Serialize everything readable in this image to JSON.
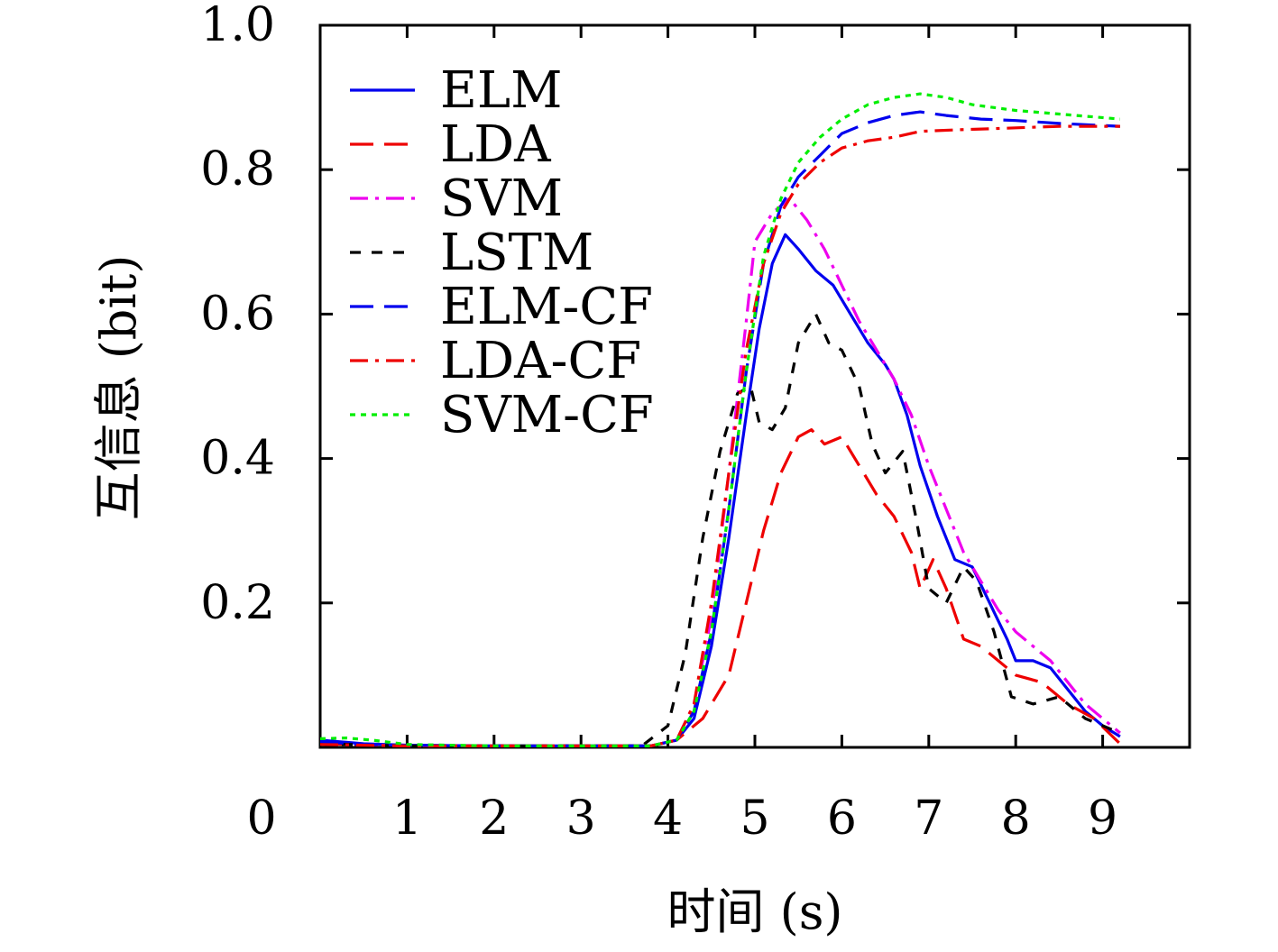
{
  "chart_data": {
    "type": "line",
    "xlabel": "时间 (s)",
    "ylabel": "互信息 (bit)",
    "xlim": [
      0,
      10
    ],
    "ylim": [
      0,
      1
    ],
    "x_ticks": [
      0,
      1,
      2,
      3,
      4,
      5,
      6,
      7,
      8,
      9
    ],
    "y_ticks": [
      0.2,
      0.4,
      0.6,
      0.8,
      1.0
    ],
    "x_tick_labels": [
      "0",
      "1",
      "2",
      "3",
      "4",
      "5",
      "6",
      "7",
      "8",
      "9"
    ],
    "y_tick_labels": [
      "0.2",
      "0.4",
      "0.6",
      "0.8",
      "1.0"
    ],
    "grid": false,
    "legend_position": "top-left",
    "series": [
      {
        "name": "ELM",
        "color": "#0000ee",
        "dash": "solid",
        "points": [
          [
            0,
            0.01
          ],
          [
            0.5,
            0.005
          ],
          [
            1,
            0.003
          ],
          [
            2,
            0.002
          ],
          [
            3,
            0.002
          ],
          [
            3.8,
            0.002
          ],
          [
            4.1,
            0.01
          ],
          [
            4.3,
            0.04
          ],
          [
            4.5,
            0.14
          ],
          [
            4.7,
            0.29
          ],
          [
            4.9,
            0.46
          ],
          [
            5.05,
            0.58
          ],
          [
            5.2,
            0.67
          ],
          [
            5.35,
            0.71
          ],
          [
            5.5,
            0.69
          ],
          [
            5.7,
            0.66
          ],
          [
            5.9,
            0.64
          ],
          [
            6.1,
            0.6
          ],
          [
            6.3,
            0.56
          ],
          [
            6.5,
            0.53
          ],
          [
            6.6,
            0.51
          ],
          [
            6.75,
            0.46
          ],
          [
            6.9,
            0.39
          ],
          [
            7.1,
            0.32
          ],
          [
            7.3,
            0.26
          ],
          [
            7.5,
            0.25
          ],
          [
            7.7,
            0.2
          ],
          [
            7.9,
            0.15
          ],
          [
            8.0,
            0.12
          ],
          [
            8.2,
            0.12
          ],
          [
            8.4,
            0.11
          ],
          [
            8.6,
            0.08
          ],
          [
            8.8,
            0.05
          ],
          [
            9.0,
            0.03
          ],
          [
            9.2,
            0.015
          ]
        ]
      },
      {
        "name": "LDA",
        "color": "#ee0000",
        "dash": "long",
        "points": [
          [
            0,
            0.005
          ],
          [
            1,
            0.002
          ],
          [
            2,
            0.002
          ],
          [
            3,
            0.002
          ],
          [
            3.8,
            0.002
          ],
          [
            4.1,
            0.01
          ],
          [
            4.4,
            0.04
          ],
          [
            4.7,
            0.1
          ],
          [
            4.9,
            0.2
          ],
          [
            5.1,
            0.3
          ],
          [
            5.3,
            0.38
          ],
          [
            5.5,
            0.43
          ],
          [
            5.65,
            0.44
          ],
          [
            5.8,
            0.42
          ],
          [
            6.0,
            0.43
          ],
          [
            6.2,
            0.39
          ],
          [
            6.4,
            0.35
          ],
          [
            6.6,
            0.32
          ],
          [
            6.8,
            0.27
          ],
          [
            6.9,
            0.22
          ],
          [
            7.05,
            0.26
          ],
          [
            7.2,
            0.22
          ],
          [
            7.4,
            0.15
          ],
          [
            7.6,
            0.14
          ],
          [
            7.8,
            0.12
          ],
          [
            8.0,
            0.1
          ],
          [
            8.3,
            0.09
          ],
          [
            8.6,
            0.06
          ],
          [
            8.9,
            0.04
          ],
          [
            9.2,
            0.005
          ]
        ]
      },
      {
        "name": "SVM",
        "color": "#ee00ee",
        "dash": "dashdot",
        "points": [
          [
            0,
            0.005
          ],
          [
            1,
            0.002
          ],
          [
            2,
            0.002
          ],
          [
            3,
            0.002
          ],
          [
            3.8,
            0.002
          ],
          [
            4.1,
            0.01
          ],
          [
            4.3,
            0.06
          ],
          [
            4.5,
            0.18
          ],
          [
            4.7,
            0.38
          ],
          [
            4.9,
            0.59
          ],
          [
            5.0,
            0.7
          ],
          [
            5.2,
            0.74
          ],
          [
            5.4,
            0.76
          ],
          [
            5.6,
            0.73
          ],
          [
            5.8,
            0.69
          ],
          [
            6.0,
            0.64
          ],
          [
            6.2,
            0.59
          ],
          [
            6.4,
            0.55
          ],
          [
            6.6,
            0.51
          ],
          [
            6.8,
            0.46
          ],
          [
            7.0,
            0.39
          ],
          [
            7.2,
            0.33
          ],
          [
            7.4,
            0.27
          ],
          [
            7.6,
            0.23
          ],
          [
            7.8,
            0.19
          ],
          [
            8.0,
            0.16
          ],
          [
            8.2,
            0.14
          ],
          [
            8.4,
            0.12
          ],
          [
            8.6,
            0.09
          ],
          [
            8.8,
            0.06
          ],
          [
            9.0,
            0.04
          ],
          [
            9.2,
            0.02
          ]
        ]
      },
      {
        "name": "LSTM",
        "color": "#000000",
        "dash": "short",
        "points": [
          [
            0,
            0.005
          ],
          [
            1,
            0.002
          ],
          [
            2,
            0.002
          ],
          [
            3,
            0.002
          ],
          [
            3.7,
            0.002
          ],
          [
            4.0,
            0.03
          ],
          [
            4.2,
            0.13
          ],
          [
            4.4,
            0.29
          ],
          [
            4.6,
            0.41
          ],
          [
            4.8,
            0.49
          ],
          [
            4.95,
            0.5
          ],
          [
            5.05,
            0.45
          ],
          [
            5.2,
            0.44
          ],
          [
            5.35,
            0.47
          ],
          [
            5.5,
            0.56
          ],
          [
            5.7,
            0.6
          ],
          [
            5.85,
            0.56
          ],
          [
            6.0,
            0.55
          ],
          [
            6.2,
            0.5
          ],
          [
            6.35,
            0.42
          ],
          [
            6.5,
            0.38
          ],
          [
            6.7,
            0.41
          ],
          [
            6.85,
            0.32
          ],
          [
            7.0,
            0.22
          ],
          [
            7.2,
            0.2
          ],
          [
            7.4,
            0.25
          ],
          [
            7.55,
            0.23
          ],
          [
            7.75,
            0.16
          ],
          [
            7.95,
            0.07
          ],
          [
            8.2,
            0.06
          ],
          [
            8.5,
            0.07
          ],
          [
            8.8,
            0.04
          ],
          [
            9.0,
            0.03
          ],
          [
            9.2,
            0.02
          ]
        ]
      },
      {
        "name": "ELM-CF",
        "color": "#0000ee",
        "dash": "long",
        "points": [
          [
            0,
            0.008
          ],
          [
            0.5,
            0.004
          ],
          [
            1,
            0.003
          ],
          [
            2,
            0.002
          ],
          [
            3,
            0.002
          ],
          [
            3.8,
            0.002
          ],
          [
            4.1,
            0.01
          ],
          [
            4.3,
            0.05
          ],
          [
            4.5,
            0.16
          ],
          [
            4.7,
            0.33
          ],
          [
            4.9,
            0.52
          ],
          [
            5.1,
            0.67
          ],
          [
            5.3,
            0.75
          ],
          [
            5.5,
            0.79
          ],
          [
            5.75,
            0.82
          ],
          [
            6.0,
            0.85
          ],
          [
            6.3,
            0.865
          ],
          [
            6.6,
            0.875
          ],
          [
            6.9,
            0.88
          ],
          [
            7.2,
            0.875
          ],
          [
            7.6,
            0.87
          ],
          [
            8.0,
            0.868
          ],
          [
            8.5,
            0.864
          ],
          [
            9.2,
            0.86
          ]
        ]
      },
      {
        "name": "LDA-CF",
        "color": "#ee0000",
        "dash": "dashdot",
        "points": [
          [
            0,
            0.004
          ],
          [
            1,
            0.002
          ],
          [
            2,
            0.002
          ],
          [
            3,
            0.002
          ],
          [
            3.8,
            0.002
          ],
          [
            4.1,
            0.01
          ],
          [
            4.3,
            0.06
          ],
          [
            4.5,
            0.2
          ],
          [
            4.7,
            0.38
          ],
          [
            4.9,
            0.55
          ],
          [
            5.1,
            0.67
          ],
          [
            5.3,
            0.74
          ],
          [
            5.5,
            0.78
          ],
          [
            5.75,
            0.81
          ],
          [
            6.0,
            0.83
          ],
          [
            6.3,
            0.84
          ],
          [
            6.6,
            0.845
          ],
          [
            6.9,
            0.853
          ],
          [
            7.3,
            0.855
          ],
          [
            7.8,
            0.857
          ],
          [
            8.5,
            0.86
          ],
          [
            9.2,
            0.86
          ]
        ]
      },
      {
        "name": "SVM-CF",
        "color": "#00ee00",
        "dash": "dotted",
        "points": [
          [
            0,
            0.012
          ],
          [
            0.3,
            0.013
          ],
          [
            0.6,
            0.01
          ],
          [
            1.0,
            0.004
          ],
          [
            2,
            0.002
          ],
          [
            3,
            0.002
          ],
          [
            3.8,
            0.002
          ],
          [
            4.1,
            0.01
          ],
          [
            4.3,
            0.05
          ],
          [
            4.5,
            0.16
          ],
          [
            4.7,
            0.33
          ],
          [
            4.9,
            0.52
          ],
          [
            5.1,
            0.68
          ],
          [
            5.3,
            0.76
          ],
          [
            5.5,
            0.81
          ],
          [
            5.75,
            0.845
          ],
          [
            6.0,
            0.87
          ],
          [
            6.3,
            0.89
          ],
          [
            6.6,
            0.9
          ],
          [
            6.9,
            0.905
          ],
          [
            7.2,
            0.9
          ],
          [
            7.5,
            0.89
          ],
          [
            8.0,
            0.882
          ],
          [
            8.5,
            0.877
          ],
          [
            9.2,
            0.87
          ]
        ]
      }
    ]
  }
}
